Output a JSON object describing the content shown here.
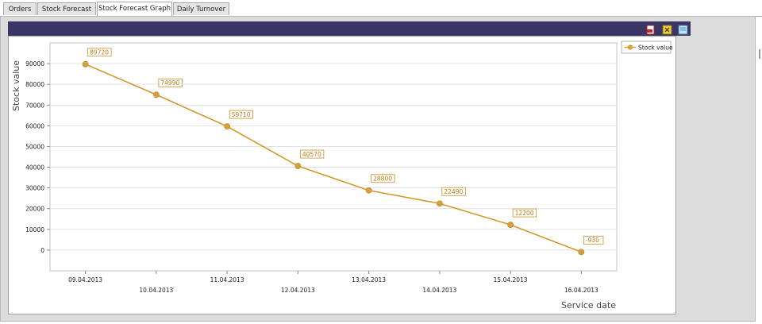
{
  "tabs": [
    {
      "label": "Orders",
      "active": false
    },
    {
      "label": "Stock Forecast",
      "active": false
    },
    {
      "label": "Stock Forecast Graph",
      "active": true
    },
    {
      "label": "Daily Turnover",
      "active": false
    }
  ],
  "toolbar": {
    "icons": [
      "pdf-export-icon",
      "excel-export-icon",
      "image-export-icon"
    ]
  },
  "colors": {
    "toolbar_bg": "#3a3564",
    "series": "#d29a2c",
    "point": "#d4a13a",
    "label_text": "#c07a10"
  },
  "chart_data": {
    "type": "line",
    "x": [
      "09.04.2013",
      "10.04.2013",
      "11.04.2013",
      "12.04.2013",
      "13.04.2013",
      "14.04.2013",
      "15.04.2013",
      "16.04.2013"
    ],
    "series": [
      {
        "name": "Stock value",
        "values": [
          89720,
          74990,
          59710,
          40570,
          28800,
          22490,
          12200,
          -930
        ]
      }
    ],
    "data_labels": [
      "89720",
      "74990",
      "59710",
      "40570",
      "28800",
      "22490",
      "12200",
      "-930"
    ],
    "xlabel": "Service date",
    "ylabel": "Stock value",
    "yticks": [
      0,
      10000,
      20000,
      30000,
      40000,
      50000,
      60000,
      70000,
      80000,
      90000
    ],
    "ylim": [
      -10000,
      100000
    ],
    "grid": true,
    "legend_position": "top-right"
  }
}
